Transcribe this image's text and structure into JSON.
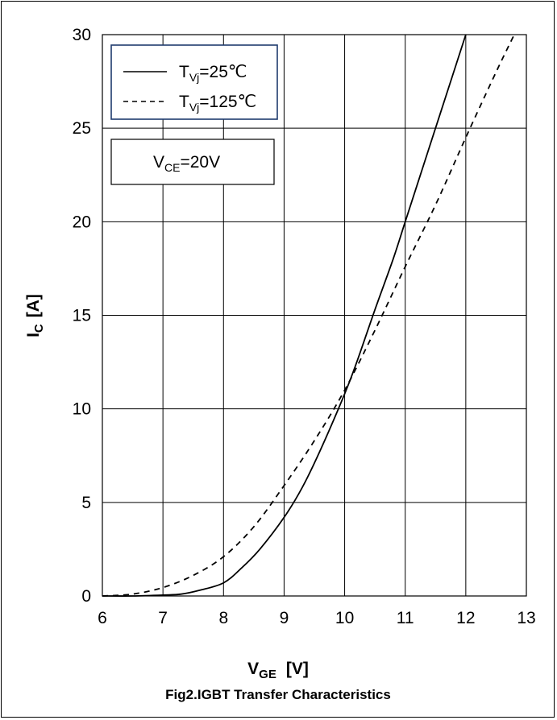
{
  "chart_data": {
    "type": "line",
    "caption": "Fig2.IGBT Transfer Characteristics",
    "xlabel": {
      "main": "V",
      "sub": "GE",
      "unit": "[V]"
    },
    "ylabel": {
      "main": "I",
      "sub": "C",
      "unit": "[A]"
    },
    "xlim": [
      6,
      13
    ],
    "ylim": [
      0,
      30
    ],
    "xticks": [
      "6",
      "7",
      "8",
      "9",
      "10",
      "11",
      "12",
      "13"
    ],
    "yticks": [
      "0",
      "5",
      "10",
      "15",
      "20",
      "25",
      "30"
    ],
    "grid": true,
    "legend": {
      "placement": "top-left",
      "entries": [
        {
          "main": "T",
          "sub": "Vj",
          "rest": "=25℃",
          "style": "solid"
        },
        {
          "main": "T",
          "sub": "Vj",
          "rest": "=125℃",
          "style": "dashed"
        }
      ]
    },
    "annotation": {
      "main": "V",
      "sub": "CE",
      "rest": "=20V"
    },
    "series": [
      {
        "name": "TVj=25℃",
        "x": [
          6.0,
          6.5,
          7.0,
          7.3,
          7.6,
          8.0,
          8.3,
          8.6,
          9.0,
          9.3,
          9.6,
          10.0,
          10.2,
          10.5,
          10.8,
          11.0,
          11.3,
          11.6,
          12.0
        ],
        "y": [
          0.0,
          0.0,
          0.05,
          0.1,
          0.3,
          0.7,
          1.5,
          2.5,
          4.2,
          5.8,
          7.8,
          10.8,
          12.5,
          15.3,
          18.0,
          20.0,
          23.0,
          26.0,
          30.0
        ]
      },
      {
        "name": "TVj=125℃",
        "x": [
          6.0,
          6.5,
          7.0,
          7.5,
          8.0,
          8.5,
          9.0,
          9.5,
          10.0,
          10.5,
          11.0,
          11.5,
          12.0,
          12.5,
          12.8
        ],
        "y": [
          0.0,
          0.1,
          0.45,
          1.1,
          2.1,
          3.7,
          5.9,
          8.3,
          11.0,
          14.2,
          17.6,
          20.9,
          24.5,
          28.0,
          30.0
        ]
      }
    ]
  }
}
